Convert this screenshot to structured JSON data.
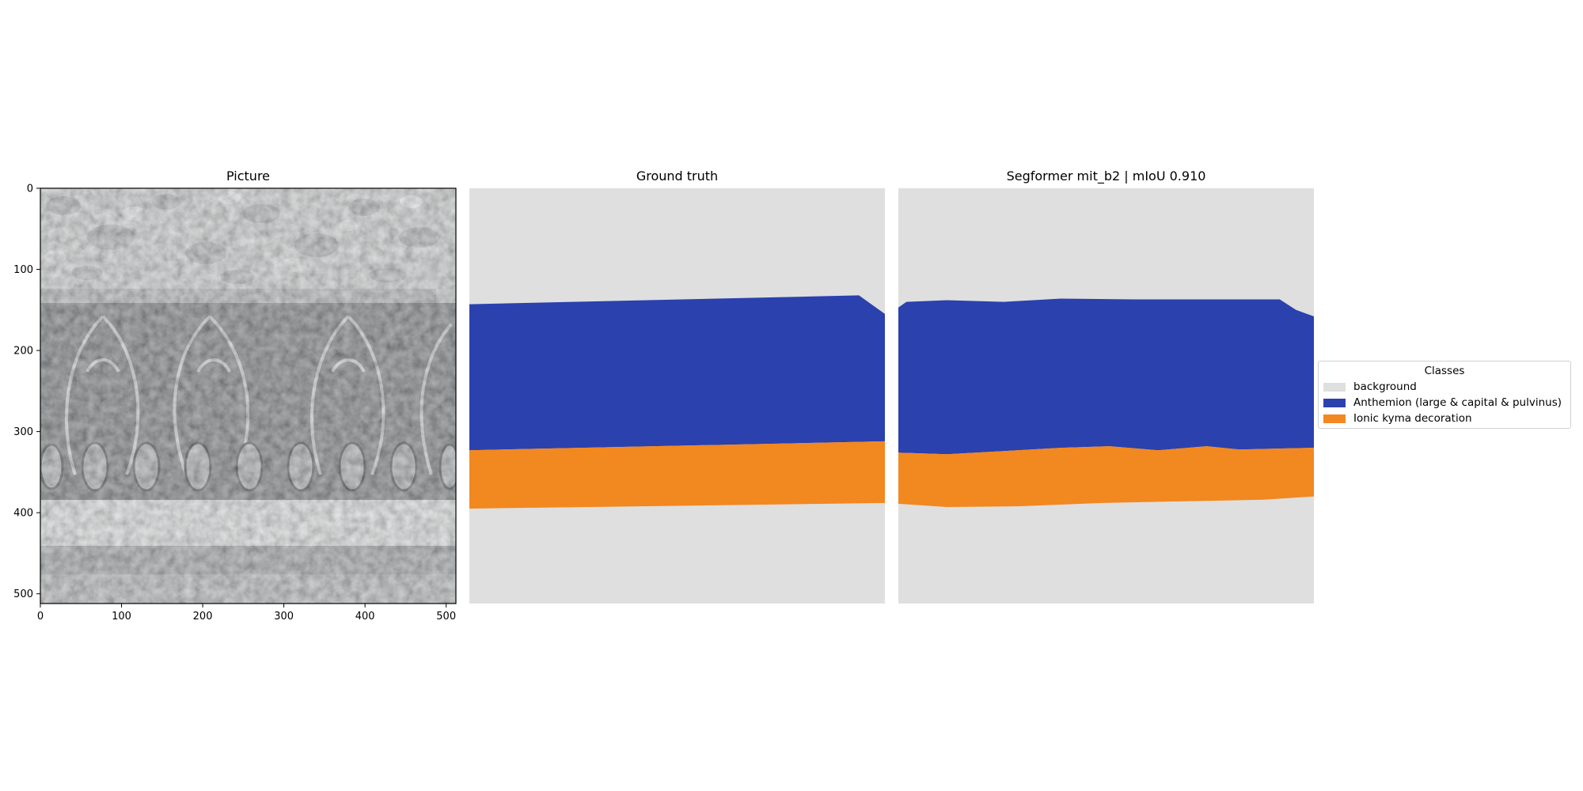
{
  "panels": [
    {
      "title": "Picture"
    },
    {
      "title": "Ground truth"
    },
    {
      "title": "Segformer mit_b2 | mIoU 0.910"
    }
  ],
  "legend": {
    "title": "Classes",
    "placement": "center-right",
    "items": [
      {
        "label": "background",
        "color": "#dfdfdf"
      },
      {
        "label": "Anthemion (large & capital & pulvinus)",
        "color": "#2b41ae"
      },
      {
        "label": "Ionic kyma decoration",
        "color": "#f28820"
      }
    ]
  },
  "chart_data": [
    {
      "type": "image",
      "title": "Picture",
      "x_ticks": [
        "0",
        "100",
        "200",
        "300",
        "400",
        "500"
      ],
      "y_ticks": [
        "0",
        "100",
        "200",
        "300",
        "400",
        "500"
      ],
      "xlim": [
        0,
        512
      ],
      "ylim": [
        512,
        0
      ]
    },
    {
      "type": "segmentation-mask",
      "title": "Ground truth",
      "xlim": [
        0,
        512
      ],
      "ylim": [
        512,
        0
      ],
      "regions": [
        {
          "class": "Anthemion (large & capital & pulvinus)",
          "top_boundary": [
            [
              0,
              143
            ],
            [
              480,
              132
            ],
            [
              512,
              155
            ]
          ],
          "bottom_boundary": [
            [
              0,
              323
            ],
            [
              512,
              312
            ]
          ]
        },
        {
          "class": "Ionic kyma decoration",
          "top_boundary": [
            [
              0,
              323
            ],
            [
              512,
              312
            ]
          ],
          "bottom_boundary": [
            [
              0,
              395
            ],
            [
              512,
              388
            ]
          ]
        }
      ]
    },
    {
      "type": "segmentation-mask",
      "title": "Segformer mit_b2 | mIoU 0.910",
      "metric": {
        "name": "mIoU",
        "value": 0.91
      },
      "xlim": [
        0,
        512
      ],
      "ylim": [
        512,
        0
      ],
      "regions": [
        {
          "class": "Anthemion (large & capital & pulvinus)",
          "top_boundary": [
            [
              0,
              147
            ],
            [
              10,
              140
            ],
            [
              60,
              138
            ],
            [
              130,
              140
            ],
            [
              200,
              136
            ],
            [
              290,
              137
            ],
            [
              400,
              137
            ],
            [
              470,
              137
            ],
            [
              490,
              150
            ],
            [
              512,
              158
            ]
          ],
          "bottom_boundary": [
            [
              0,
              326
            ],
            [
              60,
              328
            ],
            [
              130,
              324
            ],
            [
              200,
              320
            ],
            [
              260,
              318
            ],
            [
              320,
              323
            ],
            [
              380,
              318
            ],
            [
              420,
              322
            ],
            [
              512,
              320
            ]
          ]
        },
        {
          "class": "Ionic kyma decoration",
          "top_boundary": [
            [
              0,
              326
            ],
            [
              60,
              328
            ],
            [
              130,
              324
            ],
            [
              200,
              320
            ],
            [
              260,
              318
            ],
            [
              320,
              323
            ],
            [
              380,
              318
            ],
            [
              420,
              322
            ],
            [
              512,
              320
            ]
          ],
          "bottom_boundary": [
            [
              0,
              389
            ],
            [
              60,
              393
            ],
            [
              150,
              392
            ],
            [
              250,
              388
            ],
            [
              350,
              386
            ],
            [
              450,
              384
            ],
            [
              512,
              380
            ]
          ]
        }
      ]
    }
  ]
}
